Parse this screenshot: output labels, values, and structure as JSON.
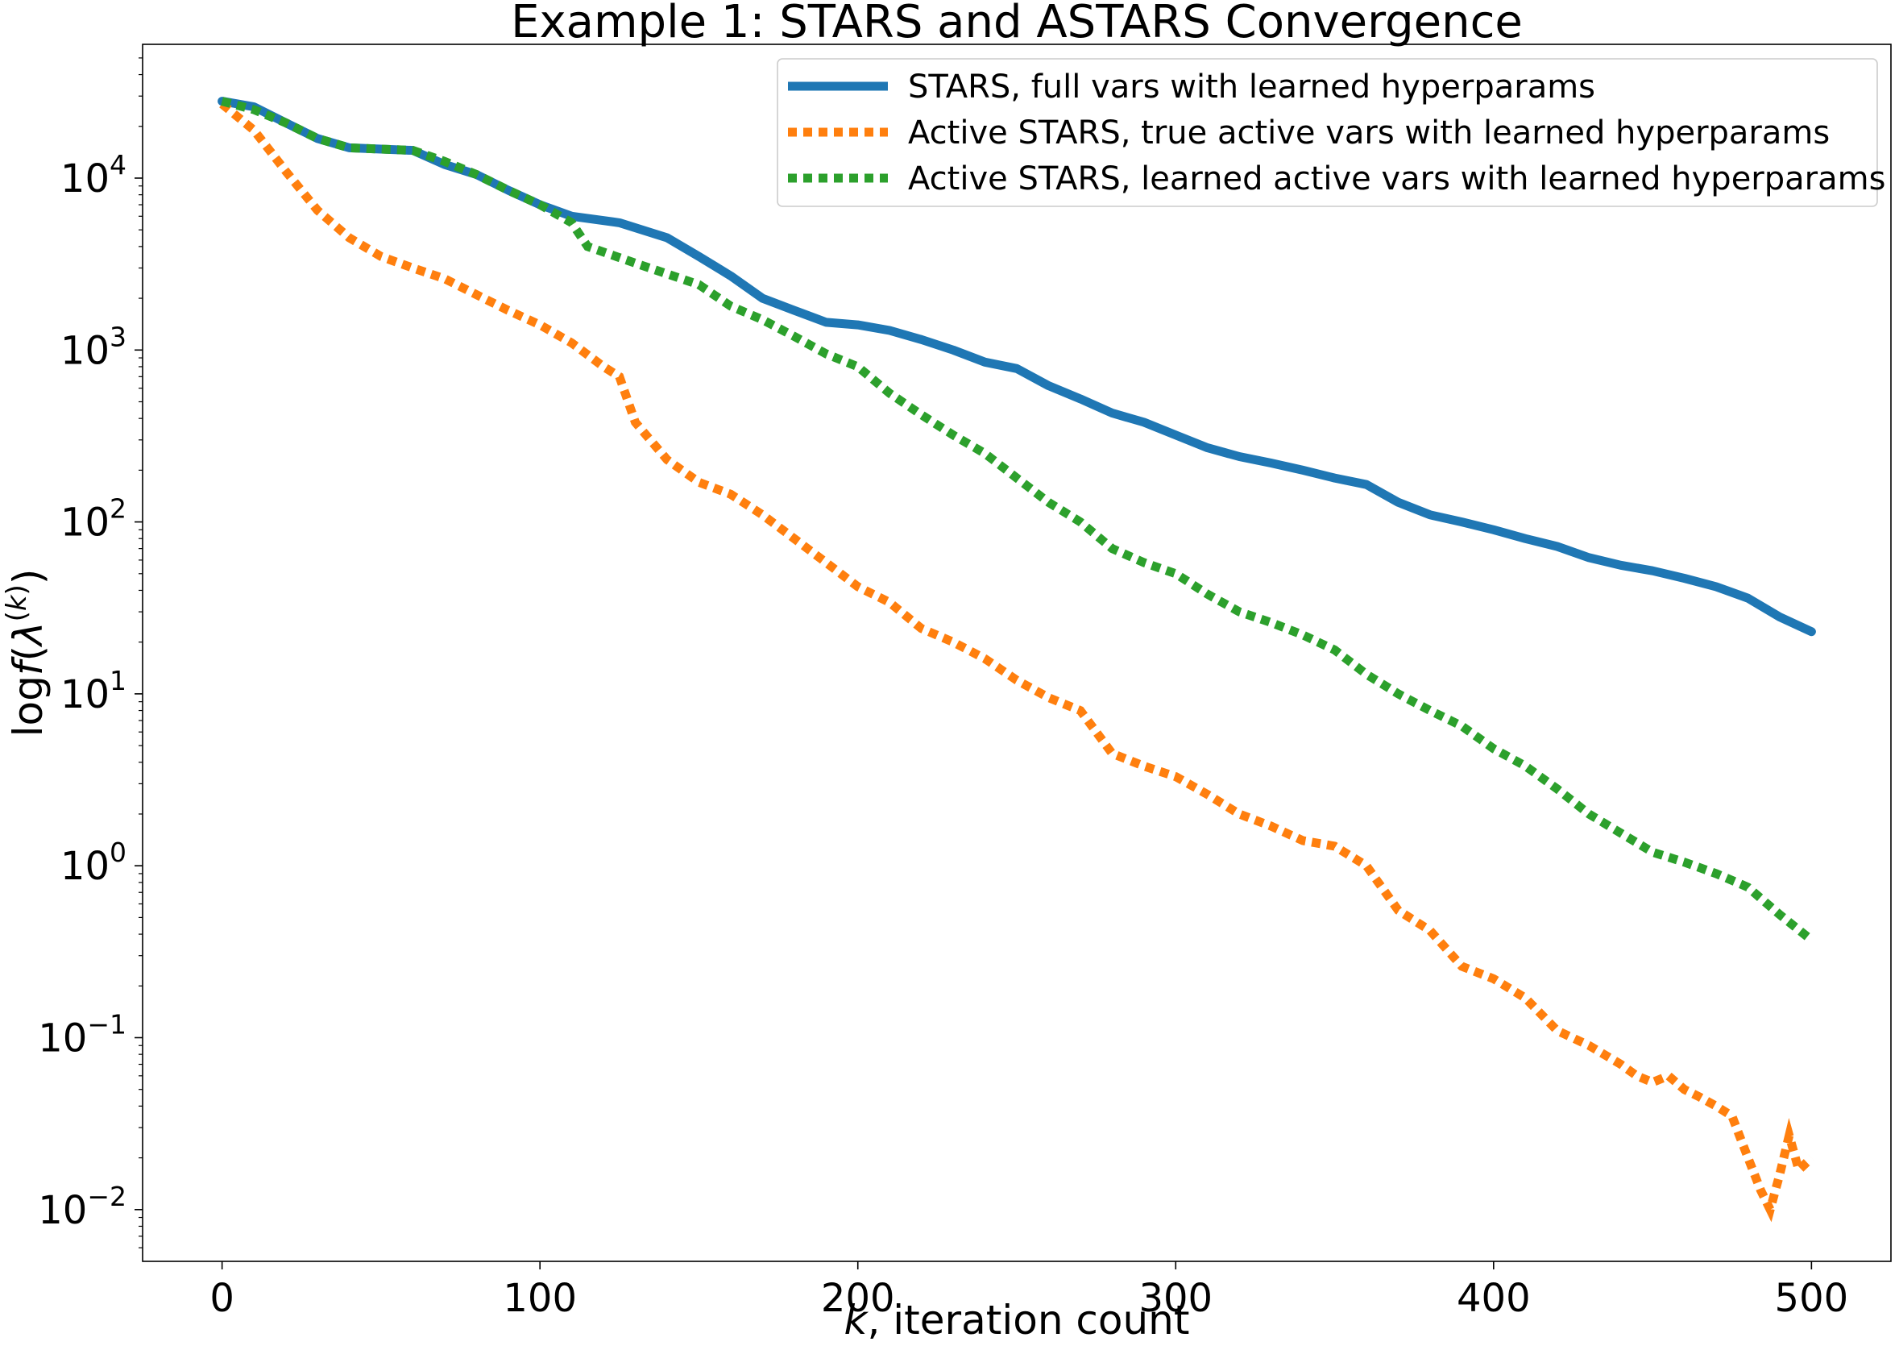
{
  "chart_data": {
    "type": "line",
    "title": "Example 1: STARS and ASTARS Convergence",
    "xlabel": "k, iteration count",
    "ylabel": "log f(λ^(k))",
    "yscale": "log",
    "xlim": [
      -25,
      525
    ],
    "ylim": [
      0.005,
      60000
    ],
    "grid": false,
    "legend_position": "upper-right",
    "x_ticks": [
      0,
      100,
      200,
      300,
      400,
      500
    ],
    "x_tick_labels": [
      "0",
      "100",
      "200",
      "300",
      "400",
      "500"
    ],
    "y_ticks": [
      0.01,
      0.1,
      1,
      10,
      100,
      1000,
      10000
    ],
    "y_tick_labels": [
      {
        "base": "10",
        "exp": "−2"
      },
      {
        "base": "10",
        "exp": "−1"
      },
      {
        "base": "10",
        "exp": "0"
      },
      {
        "base": "10",
        "exp": "1"
      },
      {
        "base": "10",
        "exp": "2"
      },
      {
        "base": "10",
        "exp": "3"
      },
      {
        "base": "10",
        "exp": "4"
      }
    ],
    "series": [
      {
        "name": "STARS, full vars with learned hyperparams",
        "color": "#1f77b4",
        "style": "solid",
        "points": [
          [
            0,
            28000
          ],
          [
            10,
            26000
          ],
          [
            20,
            21000
          ],
          [
            30,
            17000
          ],
          [
            40,
            15000
          ],
          [
            60,
            14500
          ],
          [
            70,
            12000
          ],
          [
            80,
            10500
          ],
          [
            90,
            8500
          ],
          [
            100,
            7000
          ],
          [
            110,
            6000
          ],
          [
            125,
            5500
          ],
          [
            140,
            4500
          ],
          [
            150,
            3500
          ],
          [
            160,
            2700
          ],
          [
            170,
            2000
          ],
          [
            180,
            1700
          ],
          [
            190,
            1450
          ],
          [
            200,
            1400
          ],
          [
            210,
            1300
          ],
          [
            220,
            1150
          ],
          [
            230,
            1000
          ],
          [
            240,
            850
          ],
          [
            250,
            780
          ],
          [
            260,
            620
          ],
          [
            270,
            520
          ],
          [
            280,
            430
          ],
          [
            290,
            380
          ],
          [
            300,
            320
          ],
          [
            310,
            270
          ],
          [
            320,
            240
          ],
          [
            330,
            220
          ],
          [
            340,
            200
          ],
          [
            350,
            180
          ],
          [
            360,
            165
          ],
          [
            370,
            130
          ],
          [
            380,
            110
          ],
          [
            390,
            100
          ],
          [
            400,
            90
          ],
          [
            410,
            80
          ],
          [
            420,
            72
          ],
          [
            430,
            62
          ],
          [
            440,
            56
          ],
          [
            450,
            52
          ],
          [
            460,
            47
          ],
          [
            470,
            42
          ],
          [
            480,
            36
          ],
          [
            490,
            28
          ],
          [
            500,
            23
          ]
        ]
      },
      {
        "name": "Active STARS, true active vars with learned hyperparams",
        "color": "#ff7f0e",
        "style": "dotted",
        "points": [
          [
            0,
            27000
          ],
          [
            10,
            19000
          ],
          [
            20,
            11000
          ],
          [
            30,
            6500
          ],
          [
            40,
            4500
          ],
          [
            50,
            3500
          ],
          [
            60,
            3000
          ],
          [
            70,
            2600
          ],
          [
            80,
            2100
          ],
          [
            90,
            1700
          ],
          [
            100,
            1400
          ],
          [
            110,
            1100
          ],
          [
            120,
            800
          ],
          [
            125,
            700
          ],
          [
            130,
            380
          ],
          [
            140,
            230
          ],
          [
            150,
            170
          ],
          [
            160,
            145
          ],
          [
            170,
            110
          ],
          [
            180,
            80
          ],
          [
            190,
            58
          ],
          [
            200,
            42
          ],
          [
            210,
            34
          ],
          [
            220,
            24
          ],
          [
            230,
            20
          ],
          [
            240,
            16
          ],
          [
            250,
            12
          ],
          [
            260,
            9.5
          ],
          [
            270,
            8
          ],
          [
            280,
            4.5
          ],
          [
            290,
            3.8
          ],
          [
            300,
            3.3
          ],
          [
            310,
            2.6
          ],
          [
            320,
            2
          ],
          [
            330,
            1.7
          ],
          [
            340,
            1.4
          ],
          [
            350,
            1.3
          ],
          [
            360,
            1.0
          ],
          [
            370,
            0.55
          ],
          [
            380,
            0.42
          ],
          [
            390,
            0.26
          ],
          [
            400,
            0.22
          ],
          [
            410,
            0.17
          ],
          [
            420,
            0.11
          ],
          [
            430,
            0.09
          ],
          [
            440,
            0.07
          ],
          [
            445,
            0.06
          ],
          [
            450,
            0.055
          ],
          [
            455,
            0.06
          ],
          [
            460,
            0.05
          ],
          [
            465,
            0.045
          ],
          [
            470,
            0.04
          ],
          [
            475,
            0.035
          ],
          [
            478,
            0.025
          ],
          [
            481,
            0.018
          ],
          [
            484,
            0.013
          ],
          [
            487,
            0.01
          ],
          [
            490,
            0.016
          ],
          [
            493,
            0.027
          ],
          [
            496,
            0.017
          ],
          [
            500,
            0.02
          ]
        ]
      },
      {
        "name": "Active STARS, learned active vars with learned hyperparams",
        "color": "#2ca02c",
        "style": "dotted",
        "points": [
          [
            0,
            28000
          ],
          [
            10,
            25000
          ],
          [
            20,
            21000
          ],
          [
            30,
            17000
          ],
          [
            40,
            15000
          ],
          [
            60,
            14500
          ],
          [
            70,
            12500
          ],
          [
            80,
            10500
          ],
          [
            90,
            8500
          ],
          [
            100,
            7000
          ],
          [
            110,
            5500
          ],
          [
            115,
            4000
          ],
          [
            130,
            3200
          ],
          [
            150,
            2400
          ],
          [
            160,
            1800
          ],
          [
            170,
            1500
          ],
          [
            180,
            1200
          ],
          [
            190,
            950
          ],
          [
            200,
            800
          ],
          [
            210,
            560
          ],
          [
            220,
            420
          ],
          [
            230,
            320
          ],
          [
            240,
            250
          ],
          [
            250,
            180
          ],
          [
            260,
            130
          ],
          [
            270,
            100
          ],
          [
            280,
            70
          ],
          [
            290,
            58
          ],
          [
            300,
            50
          ],
          [
            310,
            38
          ],
          [
            320,
            30
          ],
          [
            330,
            26
          ],
          [
            340,
            22
          ],
          [
            350,
            18
          ],
          [
            360,
            13
          ],
          [
            370,
            10
          ],
          [
            380,
            8
          ],
          [
            390,
            6.5
          ],
          [
            400,
            4.8
          ],
          [
            410,
            3.8
          ],
          [
            420,
            2.8
          ],
          [
            430,
            2
          ],
          [
            440,
            1.55
          ],
          [
            450,
            1.2
          ],
          [
            460,
            1.05
          ],
          [
            470,
            0.9
          ],
          [
            480,
            0.75
          ],
          [
            490,
            0.52
          ],
          [
            500,
            0.37
          ]
        ]
      }
    ]
  }
}
